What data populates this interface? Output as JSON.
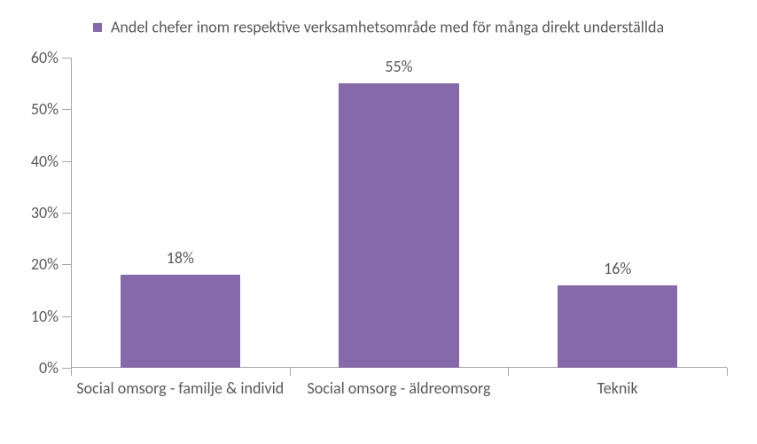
{
  "chart": {
    "type": "bar",
    "legend": {
      "label": "Andel chefer inom respektive verksamhetsområde med för många direkt underställda",
      "swatch_color": "#8669ab",
      "font_size": 18
    },
    "categories": [
      "Social omsorg - familje & individ",
      "Social omsorg - äldreomsorg",
      "Teknik"
    ],
    "values": [
      18,
      55,
      16
    ],
    "value_labels": [
      "18%",
      "55%",
      "16%"
    ],
    "bar_color": "#8669ab",
    "ylim": [
      0,
      60
    ],
    "yticks": [
      0,
      10,
      20,
      30,
      40,
      50,
      60
    ],
    "ytick_labels": [
      "0%",
      "10%",
      "20%",
      "30%",
      "40%",
      "50%",
      "60%"
    ],
    "axis_color": "#a6a6a6",
    "text_color": "#595959",
    "label_fontsize": 18,
    "value_fontsize": 18,
    "background_color": "#ffffff",
    "bar_width_ratio": 0.55
  }
}
